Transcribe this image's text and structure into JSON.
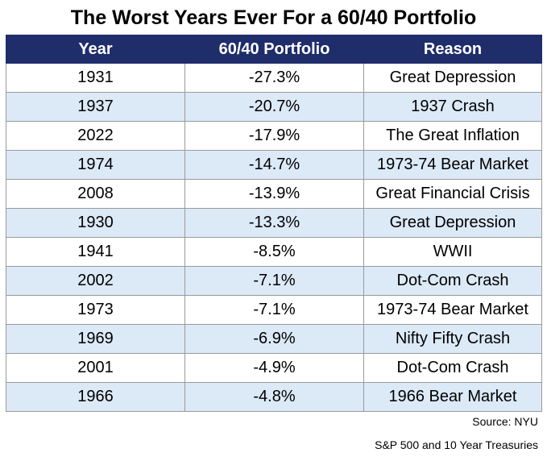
{
  "title": "The Worst Years Ever For a 60/40 Portfolio",
  "source": "Source: NYU",
  "footnote": "S&P 500 and 10 Year Treasuries",
  "colors": {
    "header_bg": "#1f2d6b",
    "header_text": "#ffffff",
    "alt_row_bg": "#dce9f7",
    "border": "#9a9a9a"
  },
  "chart_data": {
    "type": "table",
    "title": "The Worst Years Ever For a 60/40 Portfolio",
    "columns": [
      "Year",
      "60/40 Portfolio",
      "Reason"
    ],
    "rows": [
      [
        "1931",
        "-27.3%",
        "Great Depression"
      ],
      [
        "1937",
        "-20.7%",
        "1937 Crash"
      ],
      [
        "2022",
        "-17.9%",
        "The Great Inflation"
      ],
      [
        "1974",
        "-14.7%",
        "1973-74 Bear Market"
      ],
      [
        "2008",
        "-13.9%",
        "Great Financial Crisis"
      ],
      [
        "1930",
        "-13.3%",
        "Great Depression"
      ],
      [
        "1941",
        "-8.5%",
        "WWII"
      ],
      [
        "2002",
        "-7.1%",
        "Dot-Com Crash"
      ],
      [
        "1973",
        "-7.1%",
        "1973-74 Bear Market"
      ],
      [
        "1969",
        "-6.9%",
        "Nifty Fifty Crash"
      ],
      [
        "2001",
        "-4.9%",
        "Dot-Com Crash"
      ],
      [
        "1966",
        "-4.8%",
        "1966 Bear Market"
      ]
    ]
  }
}
